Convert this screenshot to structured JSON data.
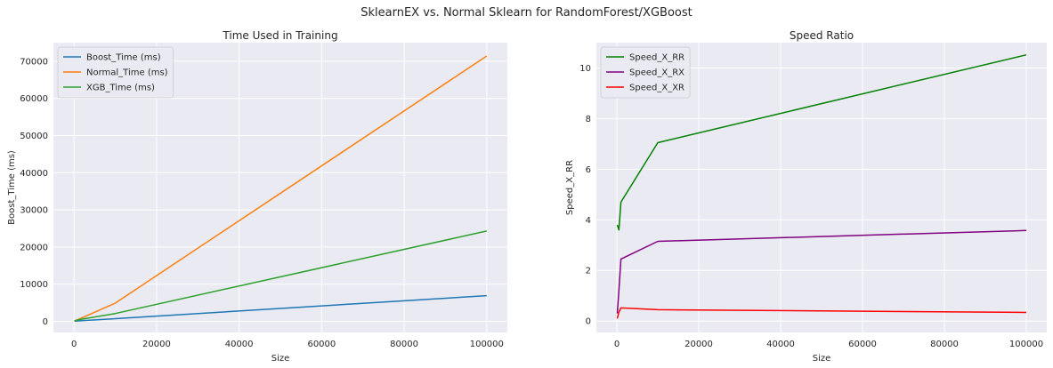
{
  "suptitle": "SklearnEX vs. Normal Sklearn for RandomForest/XGBoost",
  "chart_data": [
    {
      "type": "line",
      "title": "Time Used in Training",
      "xlabel": "Size",
      "ylabel": "Boost_Time (ms)",
      "xlim": [
        -5000,
        105000
      ],
      "ylim": [
        -3000,
        75000
      ],
      "xticks": [
        0,
        20000,
        40000,
        60000,
        80000,
        100000
      ],
      "yticks": [
        0,
        10000,
        20000,
        30000,
        40000,
        50000,
        60000,
        70000
      ],
      "grid": true,
      "legend_position": "upper-left",
      "x": [
        100,
        1000,
        10000,
        100000
      ],
      "series": [
        {
          "name": "Boost_Time (ms)",
          "color": "#1f77b4",
          "values": [
            60,
            100,
            700,
            6900
          ]
        },
        {
          "name": "Normal_Time (ms)",
          "color": "#ff7f0e",
          "values": [
            150,
            500,
            4900,
            71400
          ]
        },
        {
          "name": "XGB_Time (ms)",
          "color": "#2ca02c",
          "values": [
            120,
            400,
            2100,
            24300
          ]
        }
      ]
    },
    {
      "type": "line",
      "title": "Speed Ratio",
      "xlabel": "Size",
      "ylabel": "Speed_X_RR",
      "xlim": [
        -5000,
        105000
      ],
      "ylim": [
        -0.45,
        11.0
      ],
      "xticks": [
        0,
        20000,
        40000,
        60000,
        80000,
        100000
      ],
      "yticks": [
        0,
        2,
        4,
        6,
        8,
        10
      ],
      "grid": true,
      "legend_position": "upper-left",
      "x": [
        100,
        500,
        1000,
        10000,
        100000
      ],
      "series": [
        {
          "name": "Speed_X_RR",
          "color": "#008000",
          "values": [
            3.8,
            3.6,
            4.7,
            7.05,
            10.52
          ]
        },
        {
          "name": "Speed_X_RX",
          "color": "#800080",
          "values": [
            0.3,
            1.2,
            2.45,
            3.15,
            3.58
          ]
        },
        {
          "name": "Speed_X_XR",
          "color": "#ff0000",
          "values": [
            0.1,
            0.35,
            0.52,
            0.45,
            0.34
          ]
        }
      ]
    }
  ]
}
